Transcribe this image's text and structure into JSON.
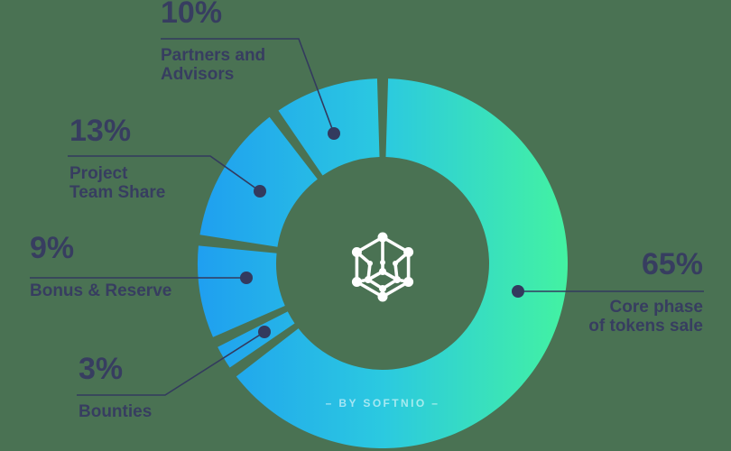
{
  "background_color": "#4a7253",
  "chart_data": {
    "type": "donut",
    "title": "",
    "unit": "%",
    "total": 100,
    "legend_position": "around",
    "grid": false,
    "geometry_hint": {
      "outer_radius": 205,
      "inner_radius": 118,
      "start_angle_deg_clockwise_from_top": 0
    },
    "gradient": {
      "start": "#1f9ff0",
      "mid": "#2bc9e0",
      "end": "#43f2a2"
    },
    "label_color": "#373d60",
    "leader_color": "#333a5e",
    "segments": [
      {
        "id": "core",
        "pct": 65,
        "pct_label": "65%",
        "name_line1": "Core phase",
        "name_line2": "of tokens sale",
        "clock_order": 0
      },
      {
        "id": "partners",
        "pct": 10,
        "pct_label": "10%",
        "name_line1": "Partners and",
        "name_line2": "Advisors",
        "clock_order": 4
      },
      {
        "id": "team",
        "pct": 13,
        "pct_label": "13%",
        "name_line1": "Project",
        "name_line2": "Team Share",
        "clock_order": 3
      },
      {
        "id": "bonus",
        "pct": 9,
        "pct_label": "9%",
        "name_line1": "Bonus & Reserve",
        "clock_order": 2
      },
      {
        "id": "bounties",
        "pct": 3,
        "pct_label": "3%",
        "name_line1": "Bounties",
        "clock_order": 1
      }
    ],
    "center_logo": "hex-network-cube-logo",
    "credit": "– BY SOFTNIO –"
  }
}
